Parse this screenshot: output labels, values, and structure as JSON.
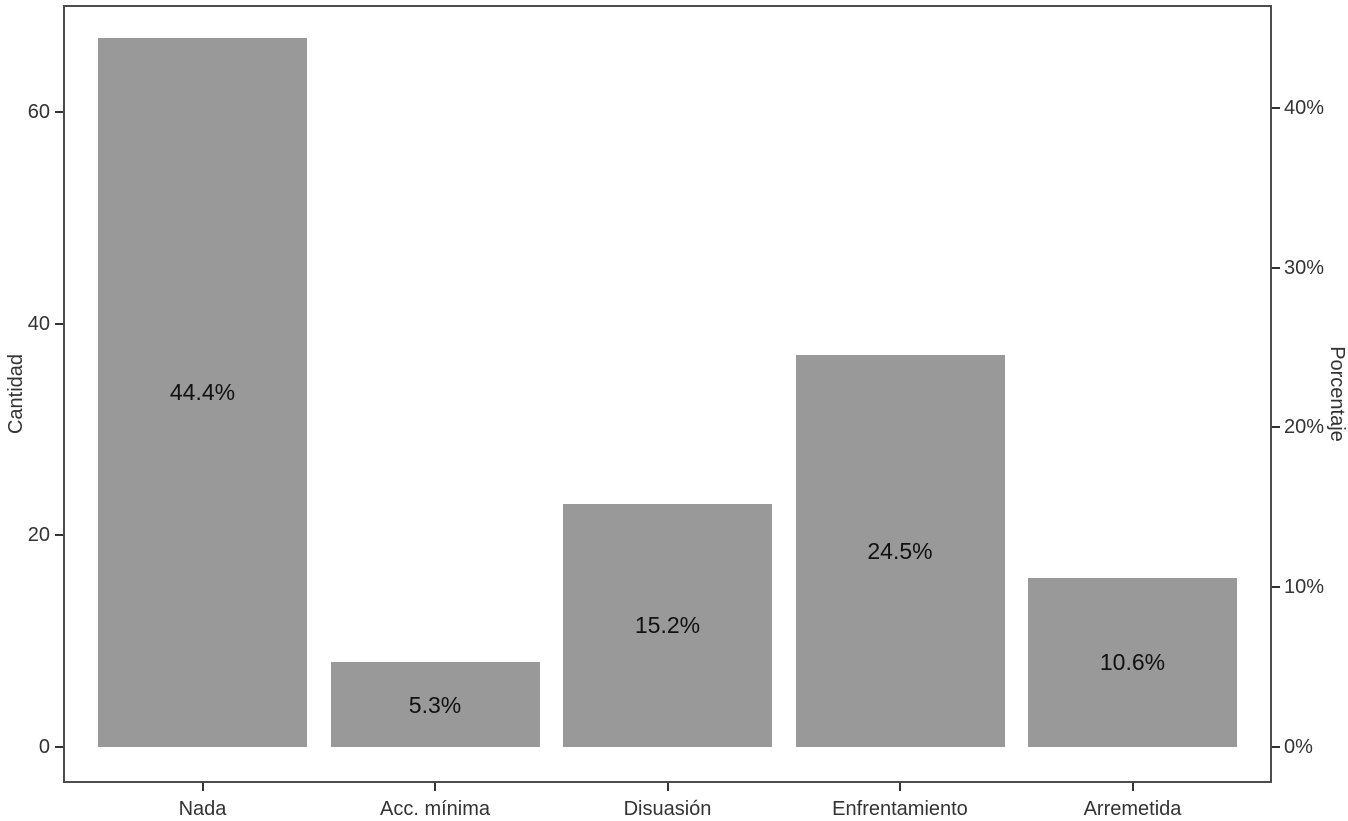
{
  "chart_data": {
    "type": "bar",
    "title": "",
    "categories": [
      "Nada",
      "Acc. mínima",
      "Disuasión",
      "Enfrentamiento",
      "Arremetida"
    ],
    "values": [
      67,
      8,
      23,
      37,
      16
    ],
    "bar_labels": [
      "44.4%",
      "5.3%",
      "15.2%",
      "24.5%",
      "10.6%"
    ],
    "xlabel": "",
    "ylabel_left": "Cantidad",
    "ylabel_right": "Porcentaje",
    "left_axis": {
      "tick_values": [
        0,
        20,
        40,
        60
      ],
      "tick_labels": [
        "0",
        "20",
        "40",
        "60"
      ],
      "range_shown": [
        0,
        70
      ]
    },
    "right_axis": {
      "tick_values": [
        0,
        10,
        20,
        30,
        40
      ],
      "tick_labels": [
        "0%",
        "10%",
        "20%",
        "30%",
        "40%"
      ]
    },
    "grid": false,
    "legend": false,
    "colors": {
      "bar_fill": "#999999",
      "panel_border": "#4d4d4d",
      "tick_mark": "#333333",
      "axis_text": "#333333",
      "bar_label_text": "#111111"
    }
  }
}
